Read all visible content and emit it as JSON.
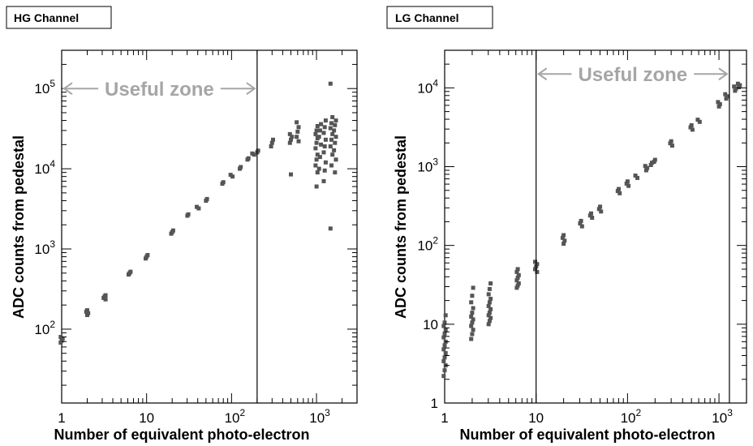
{
  "chart_data": [
    {
      "id": "hg",
      "type": "scatter",
      "title": "HG Channel",
      "xlabel": "Number of equivalent photo-electron",
      "ylabel": "ADC counts from pedestal",
      "x_scale": "log",
      "y_scale": "log",
      "xlim": [
        1,
        3000
      ],
      "ylim": [
        12,
        300000
      ],
      "grid": false,
      "x_ticks": [
        {
          "value": 1,
          "base": "1",
          "exp": ""
        },
        {
          "value": 10,
          "base": "10",
          "exp": ""
        },
        {
          "value": 100,
          "base": "10",
          "exp": "2"
        },
        {
          "value": 1000,
          "base": "10",
          "exp": "3"
        }
      ],
      "y_ticks": [
        {
          "value": 100,
          "base": "10",
          "exp": "2"
        },
        {
          "value": 1000,
          "base": "10",
          "exp": "3"
        },
        {
          "value": 10000,
          "base": "10",
          "exp": "4"
        },
        {
          "value": 100000,
          "base": "10",
          "exp": "5"
        }
      ],
      "zone_label": "Useful zone",
      "zone_range": [
        1,
        200
      ],
      "zone_y": 100000,
      "vlines": [
        200
      ],
      "points": [
        [
          1,
          68
        ],
        [
          1,
          72
        ],
        [
          1,
          76
        ],
        [
          1,
          80
        ],
        [
          2,
          150
        ],
        [
          2,
          158
        ],
        [
          2,
          165
        ],
        [
          2,
          172
        ],
        [
          3.2,
          235
        ],
        [
          3.2,
          245
        ],
        [
          3.2,
          255
        ],
        [
          3.2,
          265
        ],
        [
          6.3,
          480
        ],
        [
          6.3,
          500
        ],
        [
          6.3,
          520
        ],
        [
          10,
          760
        ],
        [
          10,
          800
        ],
        [
          10,
          840
        ],
        [
          20,
          1550
        ],
        [
          20,
          1620
        ],
        [
          20,
          1700
        ],
        [
          31,
          2600
        ],
        [
          31,
          2700
        ],
        [
          40,
          3200
        ],
        [
          40,
          3350
        ],
        [
          50,
          4000
        ],
        [
          50,
          4200
        ],
        [
          80,
          6500
        ],
        [
          80,
          6800
        ],
        [
          100,
          8000
        ],
        [
          100,
          8400
        ],
        [
          125,
          10000
        ],
        [
          125,
          10500
        ],
        [
          158,
          13000
        ],
        [
          158,
          13500
        ],
        [
          180,
          15000
        ],
        [
          180,
          15500
        ],
        [
          200,
          16000
        ],
        [
          200,
          16800
        ],
        [
          300,
          19000
        ],
        [
          300,
          21000
        ],
        [
          300,
          23000
        ],
        [
          500,
          21000
        ],
        [
          500,
          23000
        ],
        [
          500,
          25000
        ],
        [
          500,
          27000
        ],
        [
          500,
          8500
        ],
        [
          600,
          22000
        ],
        [
          600,
          25000
        ],
        [
          600,
          29000
        ],
        [
          600,
          33000
        ],
        [
          600,
          38000
        ],
        [
          1000,
          6000
        ],
        [
          1000,
          9000
        ],
        [
          1000,
          11000
        ],
        [
          1000,
          13000
        ],
        [
          1000,
          15000
        ],
        [
          1000,
          18000
        ],
        [
          1000,
          21000
        ],
        [
          1000,
          24000
        ],
        [
          1000,
          27000
        ],
        [
          1000,
          30000
        ],
        [
          1000,
          34000
        ],
        [
          1100,
          10000
        ],
        [
          1100,
          14000
        ],
        [
          1100,
          20000
        ],
        [
          1100,
          25000
        ],
        [
          1100,
          30000
        ],
        [
          1100,
          36000
        ],
        [
          1250,
          7000
        ],
        [
          1250,
          9500
        ],
        [
          1250,
          12000
        ],
        [
          1250,
          16000
        ],
        [
          1250,
          19000
        ],
        [
          1250,
          23000
        ],
        [
          1250,
          28000
        ],
        [
          1250,
          33000
        ],
        [
          1250,
          40000
        ],
        [
          1500,
          1800
        ],
        [
          1500,
          11000
        ],
        [
          1500,
          15000
        ],
        [
          1500,
          19000
        ],
        [
          1500,
          23000
        ],
        [
          1500,
          27000
        ],
        [
          1500,
          32000
        ],
        [
          1500,
          37000
        ],
        [
          1500,
          44000
        ],
        [
          1500,
          115000
        ],
        [
          1650,
          9000
        ],
        [
          1650,
          13000
        ],
        [
          1650,
          17000
        ],
        [
          1650,
          21000
        ],
        [
          1650,
          25000
        ],
        [
          1650,
          30000
        ],
        [
          1650,
          35000
        ],
        [
          1650,
          40000
        ]
      ]
    },
    {
      "id": "lg",
      "type": "scatter",
      "title": "LG Channel",
      "xlabel": "Number of equivalent photo-electron",
      "ylabel": "ADC counts from pedestal",
      "x_scale": "log",
      "y_scale": "log",
      "xlim": [
        1,
        2000
      ],
      "ylim": [
        1,
        30000
      ],
      "grid": false,
      "x_ticks": [
        {
          "value": 1,
          "base": "1",
          "exp": ""
        },
        {
          "value": 10,
          "base": "10",
          "exp": ""
        },
        {
          "value": 100,
          "base": "10",
          "exp": "2"
        },
        {
          "value": 1000,
          "base": "10",
          "exp": "3"
        }
      ],
      "y_ticks": [
        {
          "value": 1,
          "base": "1",
          "exp": ""
        },
        {
          "value": 10,
          "base": "10",
          "exp": ""
        },
        {
          "value": 100,
          "base": "10",
          "exp": "2"
        },
        {
          "value": 1000,
          "base": "10",
          "exp": "3"
        },
        {
          "value": 10000,
          "base": "10",
          "exp": "4"
        }
      ],
      "zone_label": "Useful zone",
      "zone_range": [
        10,
        1300
      ],
      "zone_y": 15000,
      "vlines": [
        10,
        1300
      ],
      "points": [
        [
          1,
          2.2
        ],
        [
          1,
          2.6
        ],
        [
          1,
          3
        ],
        [
          1,
          3.4
        ],
        [
          1,
          3.8
        ],
        [
          1,
          4.3
        ],
        [
          1,
          4.8
        ],
        [
          1,
          5.4
        ],
        [
          1,
          6
        ],
        [
          1,
          6.8
        ],
        [
          1,
          7.6
        ],
        [
          1,
          8.5
        ],
        [
          1,
          9.5
        ],
        [
          1,
          10.5
        ],
        [
          1,
          13
        ],
        [
          2,
          6.5
        ],
        [
          2,
          7.5
        ],
        [
          2,
          8.5
        ],
        [
          2,
          9.5
        ],
        [
          2,
          10.5
        ],
        [
          2,
          11.5
        ],
        [
          2,
          12.5
        ],
        [
          2,
          14
        ],
        [
          2,
          16
        ],
        [
          2,
          19
        ],
        [
          2,
          23
        ],
        [
          2,
          29
        ],
        [
          3.1,
          10
        ],
        [
          3.1,
          11
        ],
        [
          3.1,
          12
        ],
        [
          3.1,
          13
        ],
        [
          3.1,
          14
        ],
        [
          3.1,
          15.5
        ],
        [
          3.1,
          17
        ],
        [
          3.1,
          19
        ],
        [
          3.1,
          21
        ],
        [
          3.1,
          24
        ],
        [
          3.1,
          28
        ],
        [
          3.1,
          33
        ],
        [
          6.3,
          29
        ],
        [
          6.3,
          31
        ],
        [
          6.3,
          33
        ],
        [
          6.3,
          36
        ],
        [
          6.3,
          39
        ],
        [
          6.3,
          42
        ],
        [
          6.3,
          46
        ],
        [
          6.3,
          50
        ],
        [
          10,
          46
        ],
        [
          10,
          50
        ],
        [
          10,
          54
        ],
        [
          10,
          58
        ],
        [
          10,
          62
        ],
        [
          20,
          105
        ],
        [
          20,
          115
        ],
        [
          20,
          125
        ],
        [
          20,
          135
        ],
        [
          31,
          175
        ],
        [
          31,
          190
        ],
        [
          31,
          205
        ],
        [
          40,
          225
        ],
        [
          40,
          240
        ],
        [
          40,
          255
        ],
        [
          50,
          270
        ],
        [
          50,
          290
        ],
        [
          50,
          310
        ],
        [
          80,
          460
        ],
        [
          80,
          490
        ],
        [
          80,
          520
        ],
        [
          100,
          570
        ],
        [
          100,
          610
        ],
        [
          100,
          650
        ],
        [
          125,
          720
        ],
        [
          125,
          770
        ],
        [
          160,
          900
        ],
        [
          160,
          960
        ],
        [
          160,
          1020
        ],
        [
          180,
          1050
        ],
        [
          180,
          1120
        ],
        [
          200,
          1150
        ],
        [
          200,
          1220
        ],
        [
          300,
          1850
        ],
        [
          300,
          1980
        ],
        [
          300,
          2100
        ],
        [
          500,
          2950
        ],
        [
          500,
          3150
        ],
        [
          500,
          3350
        ],
        [
          600,
          3700
        ],
        [
          600,
          3950
        ],
        [
          1000,
          5800
        ],
        [
          1000,
          6200
        ],
        [
          1000,
          6600
        ],
        [
          1200,
          7300
        ],
        [
          1200,
          7800
        ],
        [
          1200,
          8300
        ],
        [
          1500,
          9200
        ],
        [
          1500,
          9800
        ],
        [
          1500,
          10400
        ],
        [
          1650,
          10200
        ],
        [
          1650,
          10800
        ],
        [
          1650,
          11300
        ]
      ]
    }
  ]
}
